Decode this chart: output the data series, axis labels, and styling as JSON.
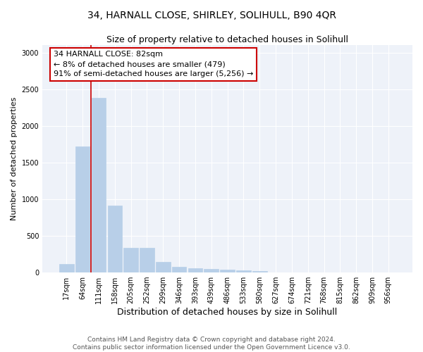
{
  "title": "34, HARNALL CLOSE, SHIRLEY, SOLIHULL, B90 4QR",
  "subtitle": "Size of property relative to detached houses in Solihull",
  "xlabel": "Distribution of detached houses by size in Solihull",
  "ylabel": "Number of detached properties",
  "categories": [
    "17sqm",
    "64sqm",
    "111sqm",
    "158sqm",
    "205sqm",
    "252sqm",
    "299sqm",
    "346sqm",
    "393sqm",
    "439sqm",
    "486sqm",
    "533sqm",
    "580sqm",
    "627sqm",
    "674sqm",
    "721sqm",
    "768sqm",
    "815sqm",
    "862sqm",
    "909sqm",
    "956sqm"
  ],
  "values": [
    120,
    1720,
    2380,
    910,
    340,
    340,
    145,
    75,
    60,
    45,
    35,
    25,
    18,
    0,
    0,
    0,
    0,
    0,
    0,
    0,
    0
  ],
  "bar_color": "#b8cfe8",
  "bar_edge_color": "#b8cfe8",
  "property_line_x": 1.5,
  "property_line_color": "#cc0000",
  "annotation_text": "34 HARNALL CLOSE: 82sqm\n← 8% of detached houses are smaller (479)\n91% of semi-detached houses are larger (5,256) →",
  "annotation_box_facecolor": "#ffffff",
  "annotation_box_edgecolor": "#cc0000",
  "ylim": [
    0,
    3100
  ],
  "yticks": [
    0,
    500,
    1000,
    1500,
    2000,
    2500,
    3000
  ],
  "bg_color": "#eef2f9",
  "grid_color": "#ffffff",
  "footer_line1": "Contains HM Land Registry data © Crown copyright and database right 2024.",
  "footer_line2": "Contains public sector information licensed under the Open Government Licence v3.0.",
  "title_fontsize": 10,
  "subtitle_fontsize": 9,
  "xlabel_fontsize": 9,
  "ylabel_fontsize": 8,
  "tick_fontsize": 7,
  "annotation_fontsize": 8,
  "footer_fontsize": 6.5
}
